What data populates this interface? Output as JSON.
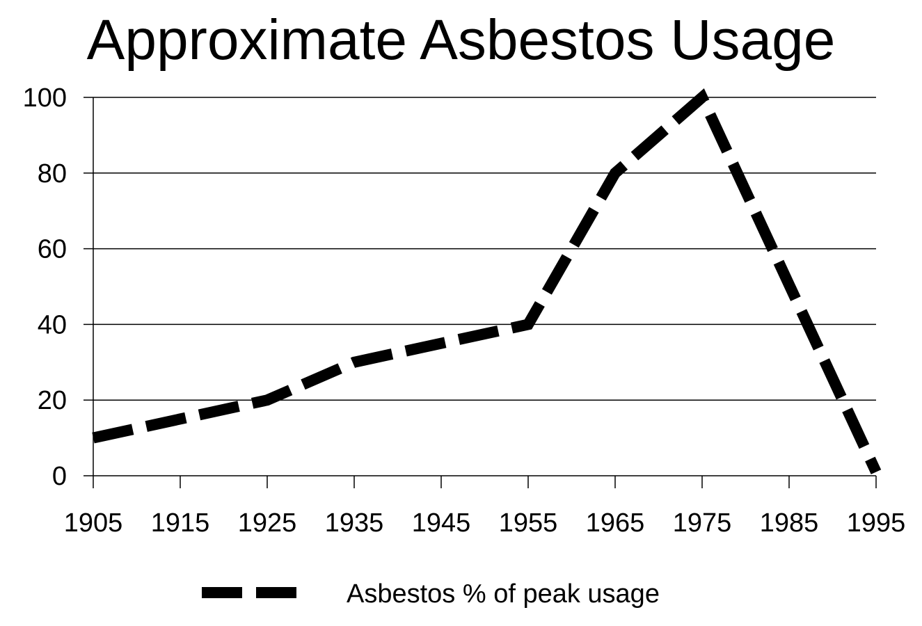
{
  "chart_data": {
    "type": "line",
    "title": "Approximate Asbestos Usage",
    "xlabel": "",
    "ylabel": "",
    "x": [
      1905,
      1915,
      1925,
      1935,
      1945,
      1955,
      1965,
      1975,
      1985,
      1995
    ],
    "x_tick_labels": [
      "1905",
      "1915",
      "1925",
      "1935",
      "1945",
      "1955",
      "1965",
      "1975",
      "1985",
      "1995"
    ],
    "y_tick_labels": [
      "0",
      "20",
      "40",
      "60",
      "80",
      "100"
    ],
    "ylim": [
      0,
      100
    ],
    "xlim": [
      1905,
      1995
    ],
    "grid": "horizontal",
    "legend_position": "bottom",
    "series": [
      {
        "name": "Asbestos % of peak usage",
        "line_style": "dashed",
        "color": "#000000",
        "x": [
          1905,
          1925,
          1935,
          1955,
          1965,
          1975,
          1995
        ],
        "values": [
          10,
          20,
          30,
          40,
          80,
          100,
          1
        ]
      }
    ]
  }
}
